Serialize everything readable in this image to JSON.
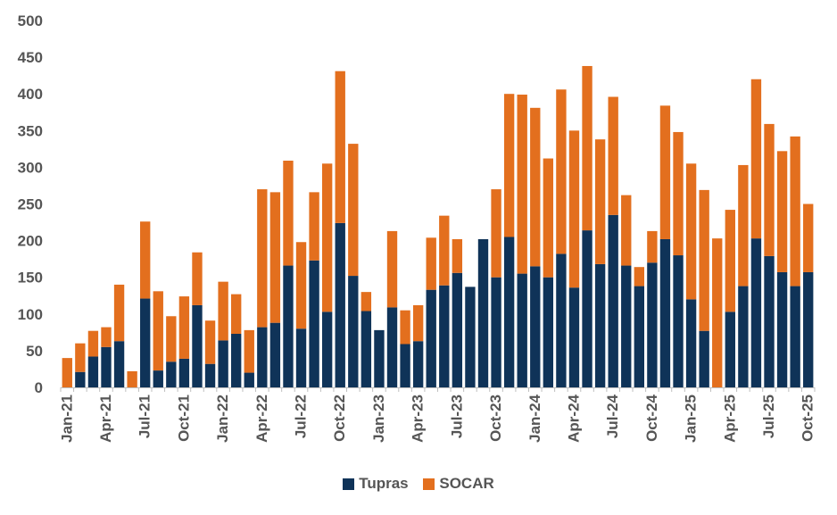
{
  "chart_data": {
    "type": "bar",
    "stacked": true,
    "title": "",
    "xlabel": "",
    "ylabel": "",
    "ylim": [
      0,
      500
    ],
    "yticks": [
      0,
      50,
      100,
      150,
      200,
      250,
      300,
      350,
      400,
      450,
      500
    ],
    "grid": false,
    "legend_position": "bottom",
    "categories": [
      "Jan-21",
      "Feb-21",
      "Mar-21",
      "Apr-21",
      "May-21",
      "Jun-21",
      "Jul-21",
      "Aug-21",
      "Sep-21",
      "Oct-21",
      "Nov-21",
      "Dec-21",
      "Jan-22",
      "Feb-22",
      "Mar-22",
      "Apr-22",
      "May-22",
      "Jun-22",
      "Jul-22",
      "Aug-22",
      "Sep-22",
      "Oct-22",
      "Nov-22",
      "Dec-22",
      "Jan-23",
      "Feb-23",
      "Mar-23",
      "Apr-23",
      "May-23",
      "Jun-23",
      "Jul-23",
      "Aug-23",
      "Sep-23",
      "Oct-23",
      "Nov-23",
      "Dec-23",
      "Jan-24",
      "Feb-24",
      "Mar-24",
      "Apr-24",
      "May-24",
      "Jun-24",
      "Jul-24",
      "Aug-24",
      "Sep-24",
      "Oct-24",
      "Nov-24",
      "Dec-24",
      "Jan-25",
      "Feb-25",
      "Mar-25",
      "Apr-25",
      "May-25",
      "Jun-25",
      "Jul-25",
      "Aug-25",
      "Sep-25",
      "Oct-25"
    ],
    "tick_labels": [
      "Jan-21",
      "Apr-21",
      "Jul-21",
      "Oct-21",
      "Jan-22",
      "Apr-22",
      "Jul-22",
      "Oct-22",
      "Jan-23",
      "Apr-23",
      "Jul-23",
      "Oct-23",
      "Jan-24",
      "Apr-24",
      "Jul-24",
      "Oct-24",
      "Jan-25",
      "Apr-25",
      "Jul-25",
      "Oct-25"
    ],
    "series": [
      {
        "name": "Tupras",
        "color": "#0f3358",
        "values": [
          0,
          21,
          42,
          55,
          63,
          0,
          121,
          23,
          35,
          39,
          112,
          32,
          64,
          73,
          20,
          82,
          88,
          166,
          80,
          173,
          103,
          224,
          152,
          104,
          78,
          109,
          59,
          63,
          133,
          139,
          156,
          137,
          202,
          150,
          205,
          155,
          165,
          150,
          182,
          136,
          214,
          168,
          235,
          166,
          138,
          170,
          202,
          180,
          120,
          77,
          0,
          103,
          138,
          203,
          179,
          157,
          138,
          157
        ]
      },
      {
        "name": "SOCAR",
        "color": "#e36f1e",
        "values": [
          40,
          39,
          35,
          27,
          77,
          22,
          105,
          108,
          62,
          85,
          72,
          59,
          80,
          54,
          58,
          188,
          178,
          143,
          118,
          93,
          202,
          207,
          180,
          26,
          0,
          104,
          46,
          49,
          71,
          95,
          46,
          0,
          0,
          120,
          195,
          244,
          216,
          162,
          224,
          214,
          224,
          170,
          161,
          96,
          26,
          43,
          182,
          168,
          185,
          192,
          203,
          139,
          165,
          217,
          180,
          165,
          204,
          93
        ]
      }
    ]
  }
}
